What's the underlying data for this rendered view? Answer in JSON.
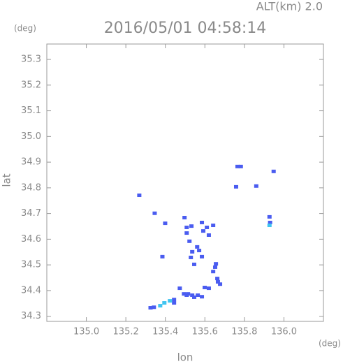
{
  "chart_data": {
    "type": "scatter",
    "title": "2016/05/01 04:58:14",
    "subtitle": "ALT(km) 2.0",
    "y_unit": "(deg)",
    "x_unit": "(deg)",
    "y_label": "lat",
    "x_label": "lon",
    "xlim": [
      134.8,
      136.2
    ],
    "ylim": [
      34.28,
      35.36
    ],
    "xticks": [
      {
        "value": 135,
        "label": "135.0"
      },
      135.2,
      135.4,
      135.6,
      135.8,
      {
        "value": 136,
        "label": "136.0"
      }
    ],
    "yticks": [
      34.3,
      34.4,
      34.5,
      34.6,
      34.7,
      34.8,
      34.9,
      {
        "value": 35,
        "label": "35.0"
      },
      35.1,
      35.2,
      35.3
    ],
    "series": [
      {
        "color": "#4a5cf0",
        "x": [
          135.765,
          135.782,
          135.948,
          135.268,
          135.758,
          135.86,
          135.927,
          135.93,
          135.346,
          135.399,
          135.497,
          135.508,
          135.508,
          135.532,
          135.585,
          135.61,
          135.642,
          135.62,
          135.592,
          135.522,
          135.561,
          135.536,
          135.571,
          135.585,
          135.529,
          135.546,
          135.385,
          135.656,
          135.652,
          135.642,
          135.663,
          135.666,
          135.677,
          135.473,
          135.494,
          135.508,
          135.536,
          135.564,
          135.585,
          135.62,
          135.599,
          135.515,
          135.546,
          135.444,
          135.342,
          135.325,
          135.444
        ],
        "y": [
          34.883,
          34.883,
          34.864,
          34.771,
          34.804,
          34.807,
          34.687,
          34.665,
          34.701,
          34.662,
          34.684,
          34.646,
          34.624,
          34.651,
          34.665,
          34.646,
          34.654,
          34.616,
          34.632,
          34.592,
          34.57,
          34.551,
          34.556,
          34.532,
          34.529,
          34.502,
          34.532,
          34.504,
          34.491,
          34.474,
          34.447,
          34.434,
          34.425,
          34.409,
          34.387,
          34.382,
          34.382,
          34.382,
          34.376,
          34.409,
          34.412,
          34.387,
          34.374,
          34.365,
          34.335,
          34.333,
          34.352
        ]
      },
      {
        "color": "#40c4f0",
        "x": [
          135.927,
          135.423,
          135.395,
          135.374
        ],
        "y": [
          34.654,
          34.36,
          34.352,
          34.341
        ]
      }
    ]
  }
}
